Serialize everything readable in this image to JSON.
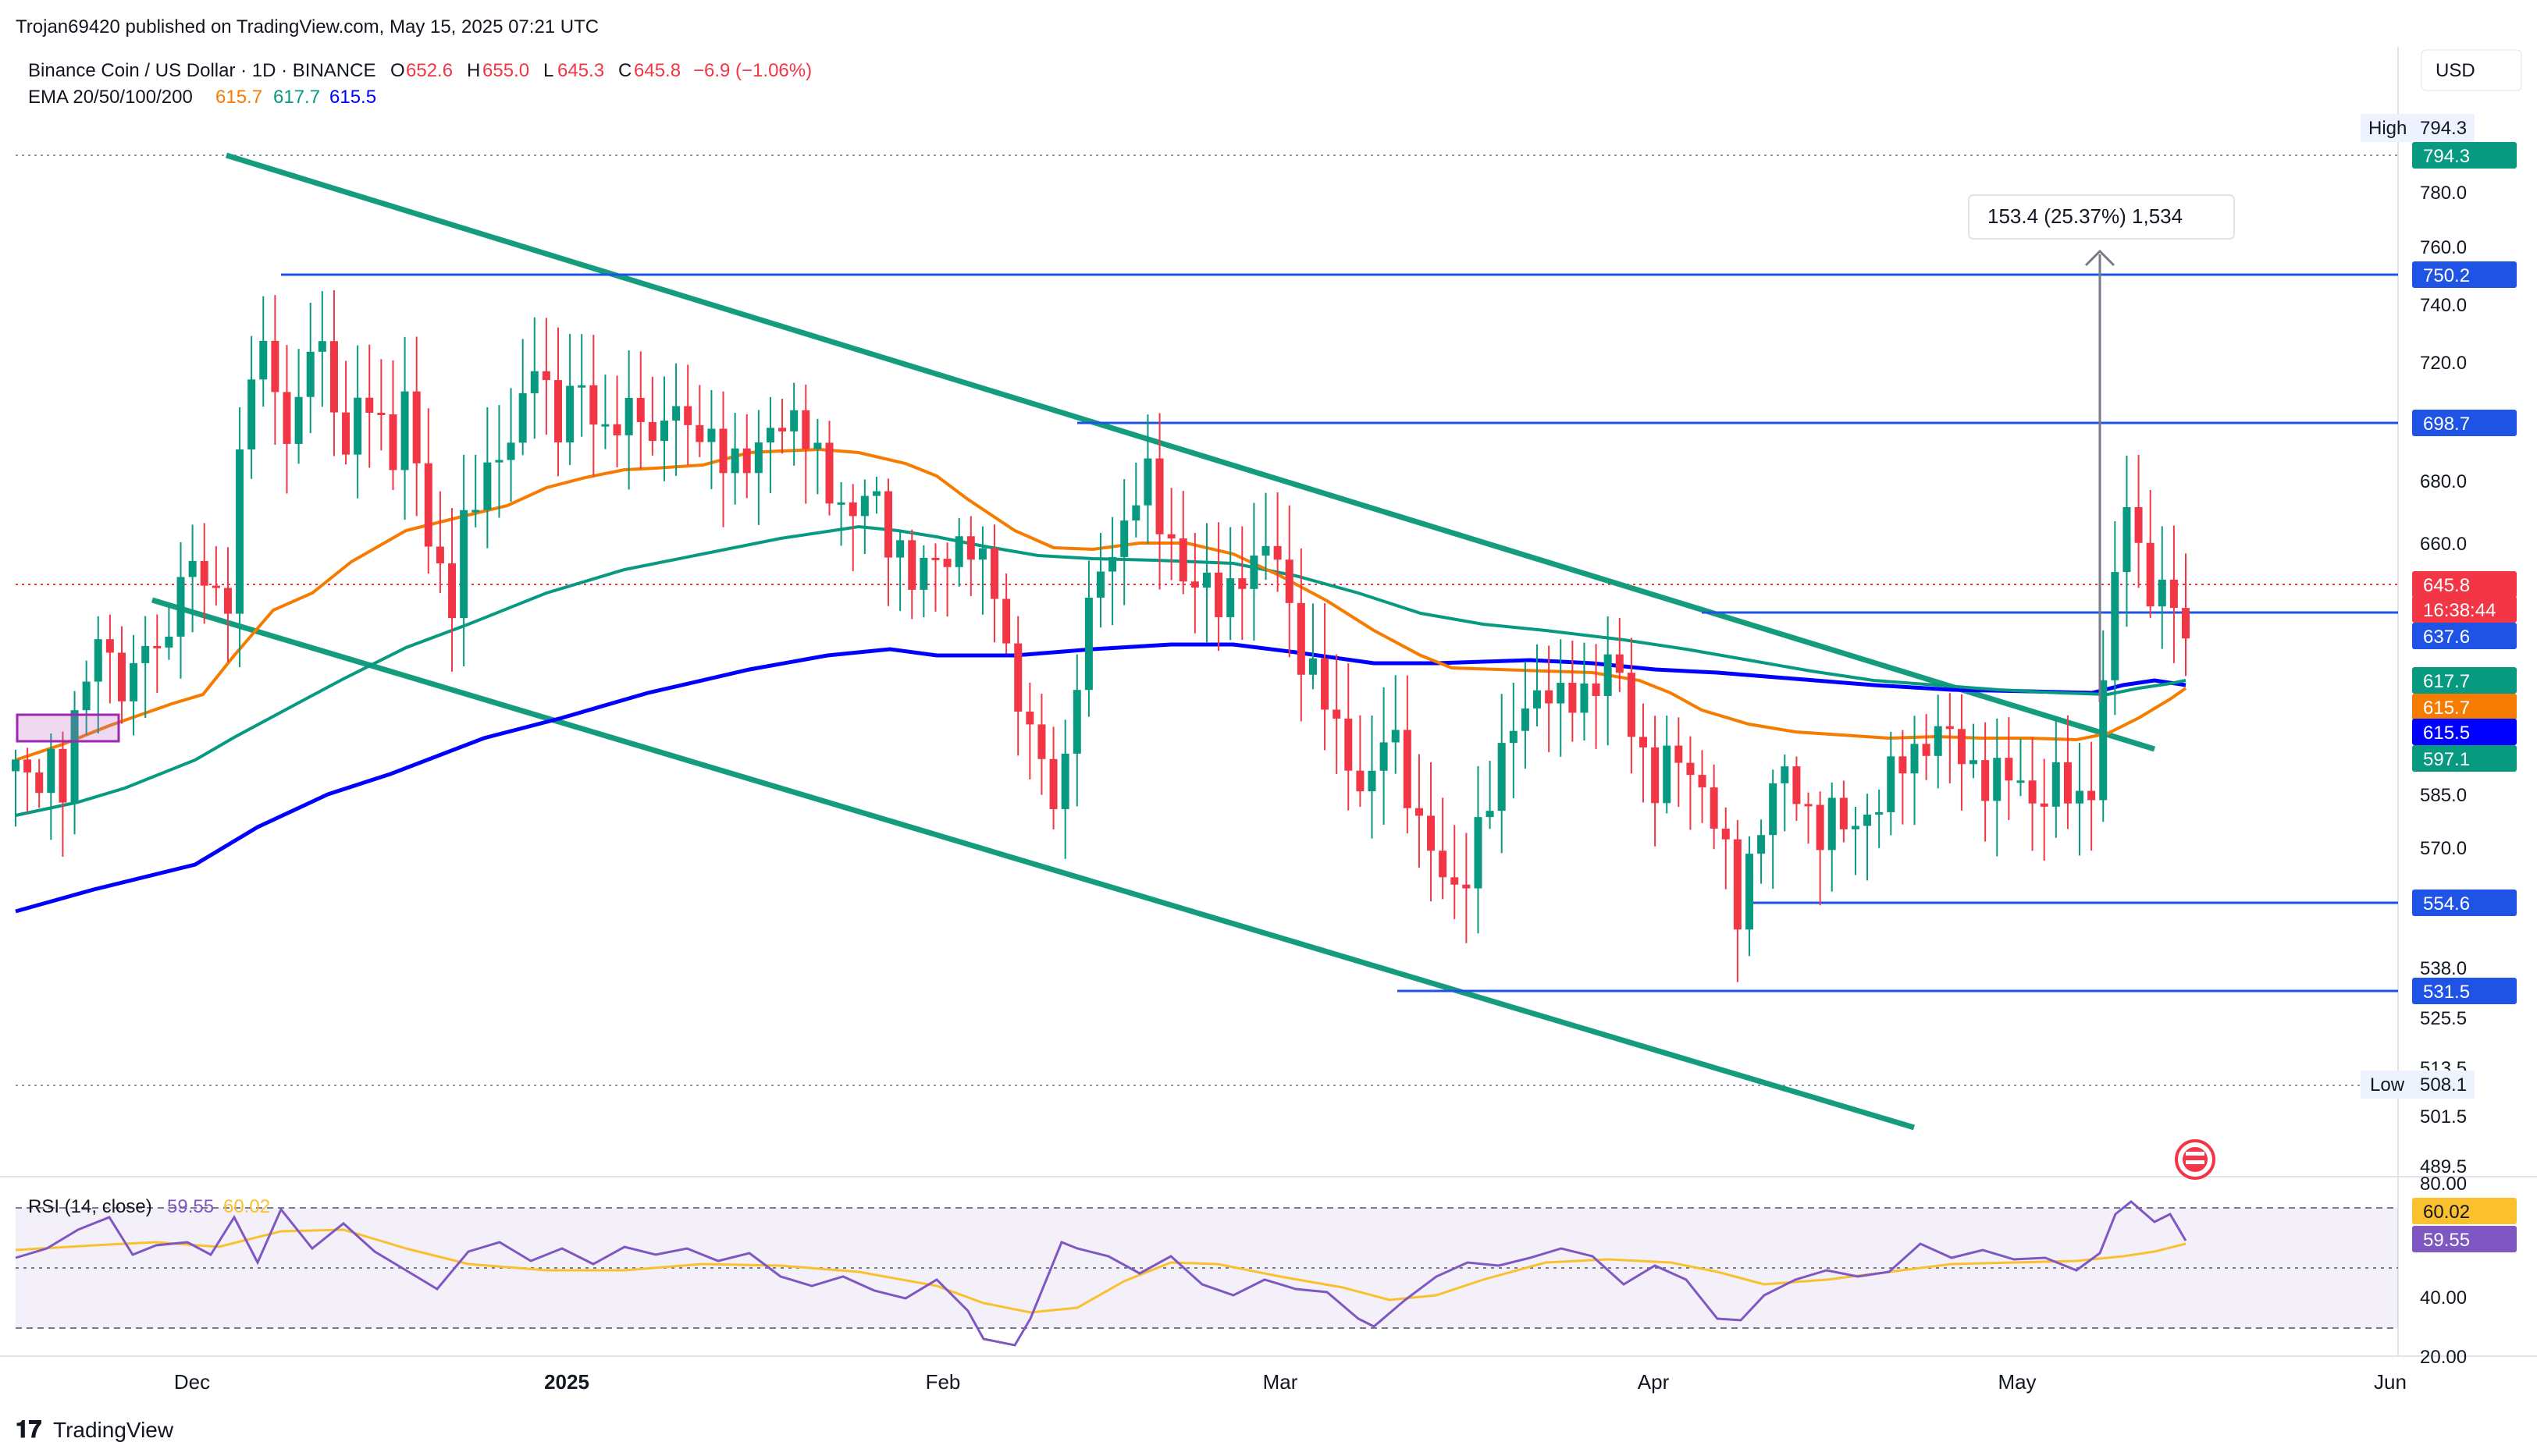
{
  "publisher": "Trojan69420 published on TradingView.com, May 15, 2025 07:21 UTC",
  "footer_brand": "TradingView",
  "currency_button": "USD",
  "colors": {
    "up": "#089981",
    "down": "#f23645",
    "ema20": "#f57c00",
    "ema50": "#089981",
    "ema100": "#22ab94",
    "ema200": "#0000ff",
    "rsi": "#7e57c2",
    "rsi_ma": "#fbc02d",
    "hline": "#1e53e5",
    "channel": "#159c7f"
  },
  "legend": {
    "symbol": "Binance Coin / US Dollar · 1D · BINANCE",
    "o_label": "O",
    "o_value": "652.6",
    "h_label": "H",
    "h_value": "655.0",
    "l_label": "L",
    "l_value": "645.3",
    "c_label": "C",
    "c_value": "645.8",
    "change": "−6.9 (−1.06%)",
    "ema_label": "EMA 20/50/100/200",
    "ema_values": [
      "615.7",
      "617.7",
      "615.5"
    ],
    "rsi_label": "RSI (14, close)",
    "rsi_values": [
      "59.55",
      "60.02"
    ]
  },
  "measure_label": "153.4 (25.37%) 1,534",
  "high_label": "High",
  "high_value": "794.3",
  "low_label": "Low",
  "low_value": "508.1",
  "price_axis_ticks": [
    "780.0",
    "760.0",
    "740.0",
    "720.0",
    "680.0",
    "660.0",
    "585.0",
    "570.0",
    "538.0",
    "525.5",
    "513.5",
    "501.5",
    "489.5"
  ],
  "price_badges": [
    {
      "text": "794.3",
      "color": "#089981"
    },
    {
      "text": "750.2",
      "color": "#1e53e5"
    },
    {
      "text": "698.7",
      "color": "#1e53e5"
    },
    {
      "text": "645.8",
      "color": "#f23645"
    },
    {
      "text": "16:38:44",
      "color": "#f23645"
    },
    {
      "text": "637.6",
      "color": "#1e53e5"
    },
    {
      "text": "617.7",
      "color": "#089981"
    },
    {
      "text": "615.7",
      "color": "#f57c00"
    },
    {
      "text": "615.5",
      "color": "#0000ff"
    },
    {
      "text": "597.1",
      "color": "#089981"
    },
    {
      "text": "554.6",
      "color": "#1e53e5"
    },
    {
      "text": "531.5",
      "color": "#1e53e5"
    }
  ],
  "rsi_axis_ticks": [
    "80.00",
    "40.00",
    "20.00"
  ],
  "rsi_badges": [
    {
      "text": "60.02",
      "color": "#fbc02d"
    },
    {
      "text": "59.55",
      "color": "#7e57c2"
    }
  ],
  "time_axis": [
    "Dec",
    "2025",
    "Feb",
    "Mar",
    "Apr",
    "May",
    "Jun"
  ],
  "chart_data": {
    "type": "candlestick",
    "title": "Binance Coin / US Dollar · 1D · BINANCE",
    "series": [
      {
        "name": "BNB/USD",
        "x": [
          "2024-11-14",
          "2024-11-21",
          "2024-11-28",
          "2024-12-03",
          "2024-12-05",
          "2024-12-12",
          "2024-12-19",
          "2024-12-26",
          "2025-01-02",
          "2025-01-09",
          "2025-01-16",
          "2025-01-23",
          "2025-02-01",
          "2025-02-03",
          "2025-02-07",
          "2025-02-12",
          "2025-02-20",
          "2025-02-25",
          "2025-03-03",
          "2025-03-09",
          "2025-03-11",
          "2025-03-18",
          "2025-03-26",
          "2025-04-02",
          "2025-04-07",
          "2025-04-09",
          "2025-04-16",
          "2025-04-23",
          "2025-04-30",
          "2025-05-07",
          "2025-05-09",
          "2025-05-14"
        ],
        "close": [
          605,
          600,
          650,
          690,
          740,
          725,
          650,
          700,
          720,
          700,
          700,
          680,
          650,
          600,
          610,
          680,
          665,
          660,
          600,
          595,
          540,
          600,
          610,
          620,
          565,
          590,
          590,
          600,
          600,
          605,
          690,
          645.8
        ]
      }
    ],
    "ema20_end": 615.7,
    "ema50_end": 617.7,
    "ema200_end": 615.5,
    "ath_high": 794.3,
    "period_low": 508.1,
    "horizontal_levels": [
      750.2,
      698.7,
      637.6,
      554.6,
      531.5
    ],
    "rsi": {
      "period": 14,
      "last": 59.55,
      "ma_last": 60.02,
      "upper_band": 70,
      "lower_band": 30
    },
    "ylim": [
      489.5,
      800
    ],
    "xlabel": "",
    "ylabel": ""
  }
}
